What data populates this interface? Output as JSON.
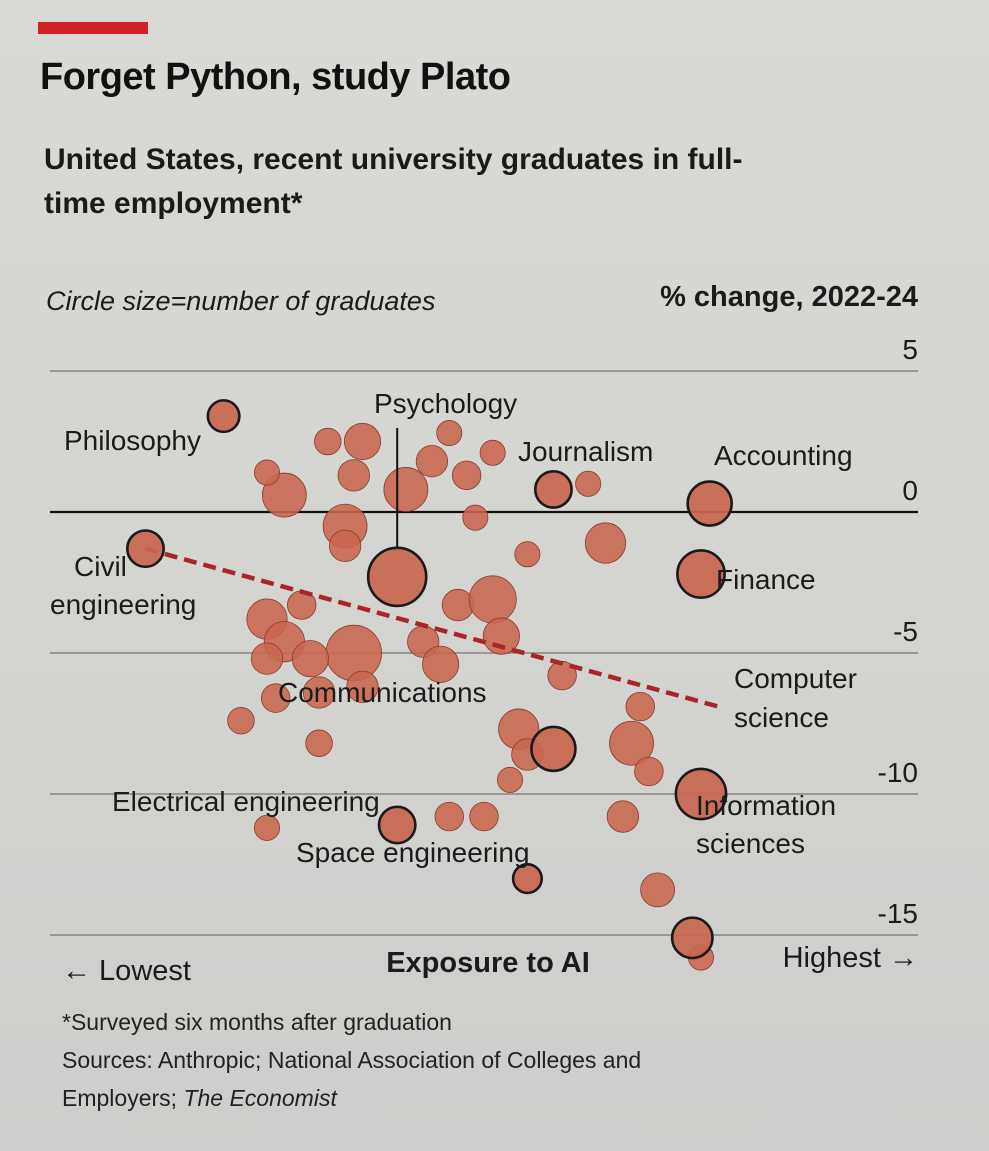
{
  "title": "Forget Python, study Plato",
  "subtitle": "United States, recent university graduates in full-time employment*",
  "circle_size_note": "Circle size=number of graduates",
  "y_unit_label": "% change, 2022-24",
  "x_axis": {
    "title": "Exposure to AI",
    "left_label": "← Lowest",
    "right_label": "Highest →"
  },
  "footnote": "*Surveyed six months after graduation",
  "sources_prefix": "Sources: Anthropic; National Association of Colleges and Employers;",
  "sources_italic": "The Economist",
  "colors": {
    "bubble_fill": "#c8664f",
    "bubble_stroke": "#8a3b2a",
    "trend": "#a8262a",
    "highlight_stroke": "#1a1a1a"
  },
  "chart_data": {
    "type": "scatter",
    "title": "Forget Python, study Plato",
    "subtitle": "United States, recent university graduates in full-time employment*",
    "xlabel": "Exposure to AI",
    "ylabel": "% change, 2022-24",
    "xlim": [
      0,
      100
    ],
    "ylim": [
      -16,
      5
    ],
    "yticks": [
      5,
      0,
      -5,
      -10,
      -15
    ],
    "size_encoding": "Circle size=number of graduates",
    "trend_line": {
      "style": "dashed",
      "from": [
        11,
        -1.3
      ],
      "to": [
        77,
        -6.9
      ]
    },
    "labeled_points": [
      {
        "label": "Philosophy",
        "x": 20,
        "y": 3.4,
        "size": 2
      },
      {
        "label": "Psychology",
        "x": 40,
        "y": -2.3,
        "size": 10
      },
      {
        "label": "Journalism",
        "x": 58,
        "y": 0.8,
        "size": 3
      },
      {
        "label": "Accounting",
        "x": 76,
        "y": 0.3,
        "size": 5
      },
      {
        "label": "Finance",
        "x": 75,
        "y": -2.2,
        "size": 6
      },
      {
        "label": "Civil engineering",
        "x": 11,
        "y": -1.3,
        "size": 3
      },
      {
        "label": "Communications",
        "x": 58,
        "y": -8.4,
        "size": 5
      },
      {
        "label": "Computer science",
        "x": 75,
        "y": -10.0,
        "size": 7
      },
      {
        "label": "Electrical engineering",
        "x": 40,
        "y": -11.1,
        "size": 3
      },
      {
        "label": "Space engineering",
        "x": 55,
        "y": -13.0,
        "size": 1.5
      },
      {
        "label": "Information sciences",
        "x": 74,
        "y": -15.1,
        "size": 4
      }
    ],
    "other_points": [
      {
        "x": 27,
        "y": 0.6,
        "size": 5
      },
      {
        "x": 34,
        "y": -0.5,
        "size": 5
      },
      {
        "x": 36,
        "y": 2.5,
        "size": 3
      },
      {
        "x": 35,
        "y": 1.3,
        "size": 2
      },
      {
        "x": 32,
        "y": 2.5,
        "size": 1.2
      },
      {
        "x": 25,
        "y": 1.4,
        "size": 1
      },
      {
        "x": 41,
        "y": 0.8,
        "size": 5
      },
      {
        "x": 44,
        "y": 1.8,
        "size": 2
      },
      {
        "x": 46,
        "y": 2.8,
        "size": 1
      },
      {
        "x": 48,
        "y": 1.3,
        "size": 1.5
      },
      {
        "x": 51,
        "y": 2.1,
        "size": 1
      },
      {
        "x": 34,
        "y": -1.2,
        "size": 2
      },
      {
        "x": 35,
        "y": -5.0,
        "size": 9
      },
      {
        "x": 25,
        "y": -3.8,
        "size": 4
      },
      {
        "x": 27,
        "y": -4.6,
        "size": 4
      },
      {
        "x": 29,
        "y": -3.3,
        "size": 1.5
      },
      {
        "x": 30,
        "y": -5.2,
        "size": 3
      },
      {
        "x": 31,
        "y": -6.4,
        "size": 2
      },
      {
        "x": 36,
        "y": -6.2,
        "size": 2
      },
      {
        "x": 25,
        "y": -5.2,
        "size": 2
      },
      {
        "x": 26,
        "y": -6.6,
        "size": 1.5
      },
      {
        "x": 43,
        "y": -4.6,
        "size": 2
      },
      {
        "x": 45,
        "y": -5.4,
        "size": 3
      },
      {
        "x": 47,
        "y": -3.3,
        "size": 2
      },
      {
        "x": 51,
        "y": -3.1,
        "size": 6
      },
      {
        "x": 52,
        "y": -4.4,
        "size": 3
      },
      {
        "x": 55,
        "y": -1.5,
        "size": 1
      },
      {
        "x": 54,
        "y": -7.7,
        "size": 4
      },
      {
        "x": 55,
        "y": -8.6,
        "size": 2
      },
      {
        "x": 53,
        "y": -9.5,
        "size": 1
      },
      {
        "x": 59,
        "y": -5.8,
        "size": 1.5
      },
      {
        "x": 64,
        "y": -1.1,
        "size": 4
      },
      {
        "x": 67,
        "y": -8.2,
        "size": 5
      },
      {
        "x": 68,
        "y": -6.9,
        "size": 1.5
      },
      {
        "x": 69,
        "y": -9.2,
        "size": 1.5
      },
      {
        "x": 66,
        "y": -10.8,
        "size": 2
      },
      {
        "x": 22,
        "y": -7.4,
        "size": 1.2
      },
      {
        "x": 31,
        "y": -8.2,
        "size": 1.2
      },
      {
        "x": 25,
        "y": -11.2,
        "size": 1
      },
      {
        "x": 46,
        "y": -10.8,
        "size": 1.5
      },
      {
        "x": 50,
        "y": -10.8,
        "size": 1.5
      },
      {
        "x": 70,
        "y": -13.4,
        "size": 2.5
      },
      {
        "x": 62,
        "y": 1.0,
        "size": 1
      },
      {
        "x": 49,
        "y": -0.2,
        "size": 1
      },
      {
        "x": 75,
        "y": -15.8,
        "size": 1
      }
    ]
  }
}
